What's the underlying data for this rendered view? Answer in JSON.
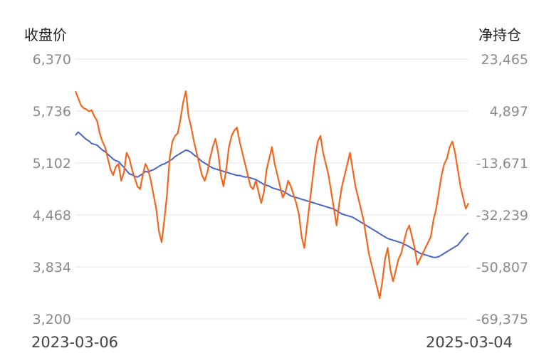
{
  "chart_data": {
    "type": "line",
    "left_axis_title": "收盘价",
    "right_axis_title": "净持仓",
    "left_ticks": [
      "6,370",
      "5,736",
      "5,102",
      "4,468",
      "3,834",
      "3,200"
    ],
    "right_ticks": [
      "23,465",
      "4,897",
      "-13,671",
      "-32,239",
      "-50,807",
      "-69,375"
    ],
    "left_range": [
      3200,
      6370
    ],
    "right_range": [
      -69375,
      23465
    ],
    "x_labels": [
      "2023-03-06",
      "2025-03-04"
    ],
    "grid": true,
    "series": [
      {
        "name": "收盘价",
        "axis": "left",
        "color": "#4a63c8",
        "values": [
          5440,
          5480,
          5450,
          5420,
          5390,
          5370,
          5340,
          5330,
          5320,
          5290,
          5260,
          5240,
          5210,
          5180,
          5150,
          5130,
          5120,
          5080,
          5050,
          5010,
          4970,
          4960,
          4940,
          4930,
          4950,
          4970,
          5000,
          4990,
          5010,
          5020,
          5040,
          5060,
          5080,
          5090,
          5110,
          5130,
          5150,
          5180,
          5200,
          5220,
          5240,
          5260,
          5250,
          5230,
          5200,
          5180,
          5150,
          5120,
          5100,
          5080,
          5060,
          5040,
          5030,
          5020,
          5010,
          5000,
          4990,
          4980,
          4970,
          4960,
          4950,
          4950,
          4940,
          4930,
          4930,
          4920,
          4910,
          4900,
          4880,
          4860,
          4840,
          4830,
          4820,
          4800,
          4790,
          4780,
          4770,
          4760,
          4740,
          4720,
          4700,
          4690,
          4680,
          4670,
          4660,
          4650,
          4640,
          4630,
          4620,
          4610,
          4600,
          4590,
          4580,
          4570,
          4560,
          4550,
          4540,
          4520,
          4500,
          4480,
          4470,
          4460,
          4450,
          4440,
          4420,
          4400,
          4380,
          4360,
          4340,
          4320,
          4300,
          4280,
          4260,
          4240,
          4220,
          4200,
          4180,
          4170,
          4160,
          4150,
          4140,
          4130,
          4110,
          4100,
          4080,
          4060,
          4040,
          4020,
          4000,
          3990,
          3980,
          3970,
          3960,
          3950,
          3950,
          3960,
          3980,
          4000,
          4020,
          4040,
          4060,
          4080,
          4100,
          4140,
          4180,
          4220,
          4250
        ]
      },
      {
        "name": "净持仓",
        "axis": "right",
        "color": "#f4661b",
        "values": [
          12000,
          9500,
          7000,
          6000,
          5500,
          4800,
          5200,
          3000,
          1500,
          -3000,
          -6000,
          -8000,
          -12000,
          -16000,
          -18000,
          -15000,
          -14000,
          -20000,
          -17000,
          -10000,
          -12000,
          -16000,
          -19000,
          -22000,
          -23000,
          -18000,
          -14000,
          -16000,
          -20000,
          -25000,
          -30000,
          -38000,
          -42000,
          -34000,
          -25000,
          -12000,
          -6000,
          -4000,
          -3000,
          2000,
          8000,
          12000,
          3000,
          -1000,
          -6000,
          -10000,
          -14000,
          -18000,
          -20000,
          -17000,
          -12000,
          -8000,
          -5000,
          -10000,
          -18000,
          -22000,
          -16000,
          -8000,
          -4000,
          -2000,
          -1000,
          -6000,
          -10000,
          -14000,
          -18000,
          -22000,
          -23000,
          -20000,
          -24000,
          -28000,
          -24000,
          -16000,
          -12000,
          -8000,
          -14000,
          -18000,
          -22000,
          -26000,
          -24000,
          -20000,
          -22000,
          -25000,
          -28000,
          -32000,
          -40000,
          -44000,
          -36000,
          -28000,
          -20000,
          -12000,
          -6000,
          -4000,
          -10000,
          -14000,
          -18000,
          -24000,
          -30000,
          -36000,
          -28000,
          -22000,
          -18000,
          -14000,
          -10000,
          -16000,
          -22000,
          -26000,
          -30000,
          -34000,
          -40000,
          -46000,
          -50000,
          -54000,
          -58000,
          -62000,
          -56000,
          -48000,
          -44000,
          -52000,
          -56000,
          -52000,
          -48000,
          -46000,
          -42000,
          -38000,
          -36000,
          -40000,
          -44000,
          -50000,
          -48000,
          -46000,
          -44000,
          -42000,
          -40000,
          -34000,
          -30000,
          -24000,
          -18000,
          -14000,
          -12000,
          -8000,
          -6000,
          -10000,
          -16000,
          -22000,
          -26000,
          -30000,
          -28000
        ]
      }
    ]
  }
}
